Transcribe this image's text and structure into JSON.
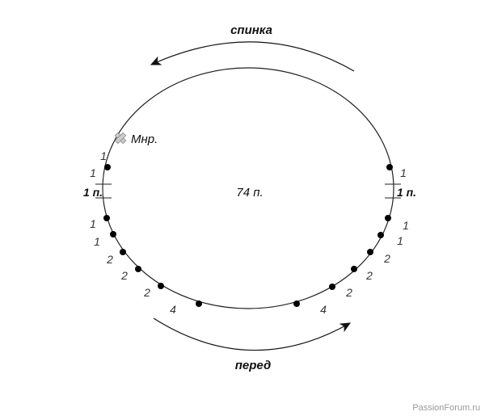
{
  "top_label": "спинка",
  "bottom_label": "перед",
  "center_label": "74 п.",
  "marker_label": "Мнр.",
  "watermark": "PassionForum.ru",
  "left_labels": [
    "1",
    "1",
    "1 п.",
    "1",
    "1",
    "2",
    "2",
    "2",
    "4"
  ],
  "right_labels": [
    "1",
    "1 п.",
    "1",
    "1",
    "2",
    "2",
    "2",
    "4"
  ],
  "icons": {
    "marker": "cross-marker-icon",
    "dots": "stitch-dot-icon",
    "arrows": "direction-arrow-icon"
  }
}
